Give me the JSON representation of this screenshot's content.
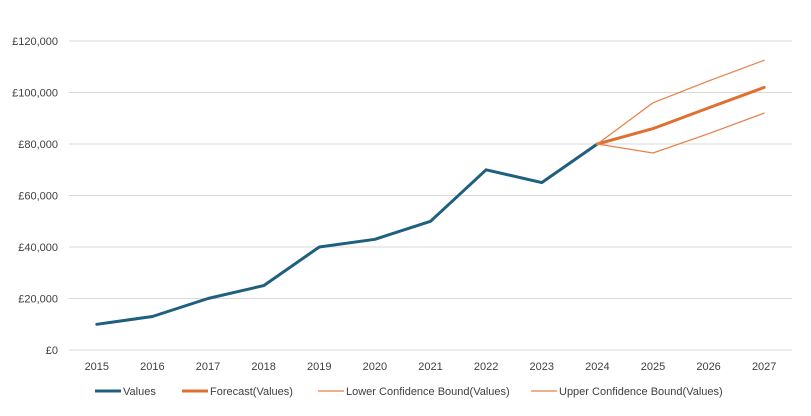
{
  "chart_data": {
    "type": "line",
    "title": "",
    "xlabel": "",
    "ylabel": "",
    "categories": [
      "2015",
      "2016",
      "2017",
      "2018",
      "2019",
      "2020",
      "2021",
      "2022",
      "2023",
      "2024",
      "2025",
      "2026",
      "2027"
    ],
    "ylim": [
      0,
      120000
    ],
    "y_ticks": [
      0,
      20000,
      40000,
      60000,
      80000,
      100000,
      120000
    ],
    "y_tick_labels": [
      "£0",
      "£20,000",
      "£40,000",
      "£60,000",
      "£80,000",
      "£100,000",
      "£120,000"
    ],
    "grid": true,
    "legend_position": "bottom",
    "series": [
      {
        "name": "Values",
        "color": "#1f5f7f",
        "values": [
          10000,
          13000,
          20000,
          25000,
          40000,
          43000,
          50000,
          70000,
          65000,
          80000,
          null,
          null,
          null
        ]
      },
      {
        "name": "Forecast(Values)",
        "color": "#e07030",
        "values": [
          null,
          null,
          null,
          null,
          null,
          null,
          null,
          null,
          null,
          80000,
          86000,
          94000,
          102000
        ]
      },
      {
        "name": "Lower Confidence Bound(Values)",
        "color": "#e8804a",
        "values": [
          null,
          null,
          null,
          null,
          null,
          null,
          null,
          null,
          null,
          80000,
          76500,
          84000,
          92000
        ]
      },
      {
        "name": "Upper Confidence Bound(Values)",
        "color": "#e8804a",
        "values": [
          null,
          null,
          null,
          null,
          null,
          null,
          null,
          null,
          null,
          80000,
          96000,
          104500,
          112500
        ]
      }
    ]
  }
}
